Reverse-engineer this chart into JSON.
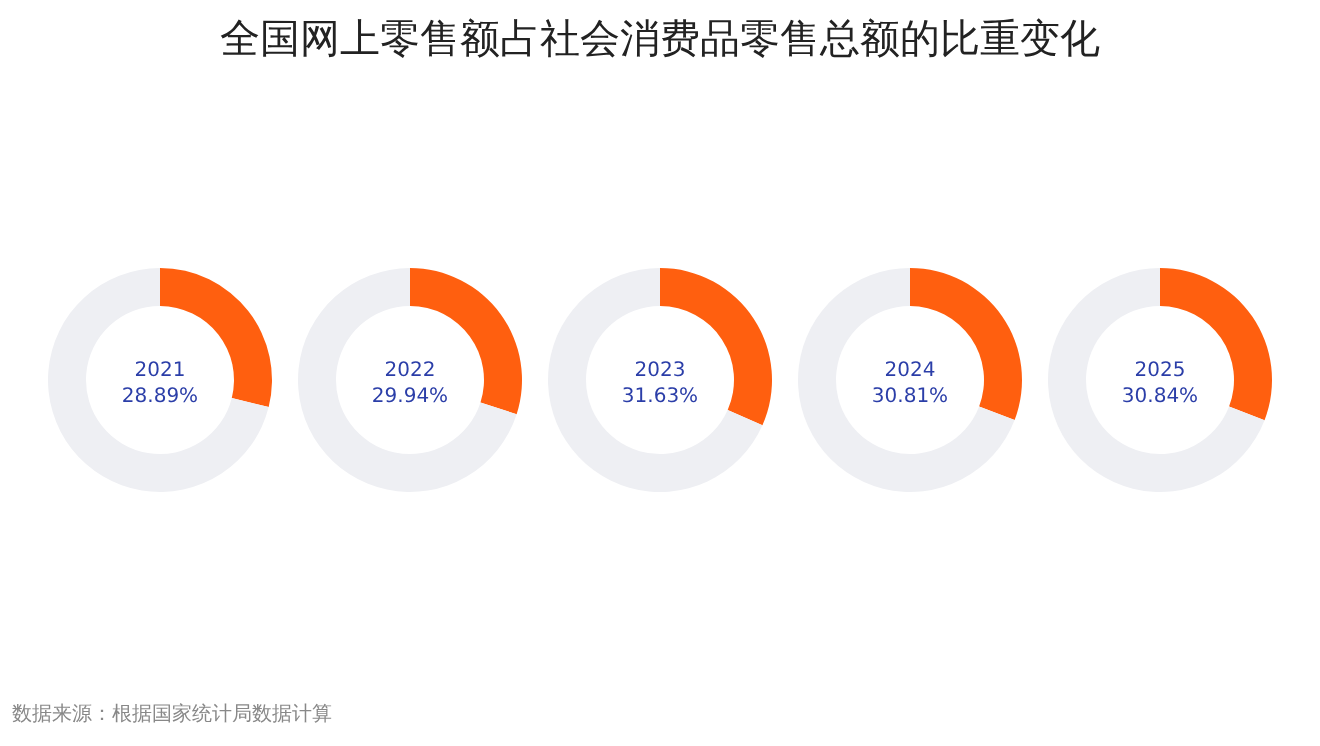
{
  "chart_data": [
    {
      "type": "other",
      "title": "全国网上零售额占社会消费品零售总额的比重变化",
      "annotations": [
        "数据来源：根据国家统计局数据计算"
      ]
    },
    {
      "type": "donut",
      "title": "2021",
      "categories": [
        null,
        null
      ],
      "values": [
        28.89,
        71.11
      ],
      "colors": [
        "#ff5f0f",
        "#eeeff3"
      ],
      "annotations": [
        "28.89%"
      ]
    },
    {
      "type": "donut",
      "title": "2022",
      "categories": [
        null,
        null
      ],
      "values": [
        29.94,
        70.06
      ],
      "colors": [
        "#ff5f0f",
        "#eeeff3"
      ],
      "annotations": [
        "29.94%"
      ]
    },
    {
      "type": "donut",
      "title": "2023",
      "categories": [
        null,
        null
      ],
      "values": [
        31.63,
        68.37
      ],
      "colors": [
        "#ff5f0f",
        "#eeeff3"
      ],
      "annotations": [
        "31.63%"
      ]
    },
    {
      "type": "donut",
      "title": "2024",
      "categories": [
        null,
        null
      ],
      "values": [
        30.81,
        69.19
      ],
      "colors": [
        "#ff5f0f",
        "#eeeff3"
      ],
      "annotations": [
        "30.81%"
      ]
    },
    {
      "type": "donut",
      "title": "2025",
      "categories": [
        null,
        null
      ],
      "values": [
        30.84,
        69.16
      ],
      "colors": [
        "#ff5f0f",
        "#eeeff3"
      ],
      "annotations": [
        "30.84%"
      ]
    }
  ]
}
